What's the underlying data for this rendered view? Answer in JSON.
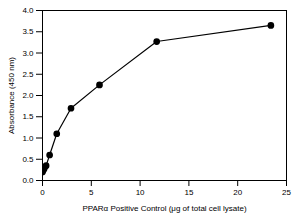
{
  "chart_data": {
    "type": "line",
    "x_label": "PPARα Positive Control (μg of total cell lysate)",
    "y_label": "Absorbance (450 nm)",
    "x": [
      0,
      0.09,
      0.18,
      0.37,
      0.73,
      1.46,
      2.92,
      5.84,
      11.7,
      23.4
    ],
    "values": [
      0.2,
      0.25,
      0.28,
      0.35,
      0.6,
      1.1,
      1.7,
      2.25,
      3.27,
      3.65
    ],
    "color": "#000000",
    "marker": "circle",
    "line_style": "solid",
    "xlim": [
      0,
      25
    ],
    "xticks": [
      0,
      5,
      10,
      15,
      20,
      25
    ],
    "ylim": [
      0,
      4
    ],
    "yticks": [
      {
        "value": 0,
        "label": "0.0"
      },
      {
        "value": 0.5,
        "label": "0.5"
      },
      {
        "value": 1,
        "label": "1.0"
      },
      {
        "value": 1.5,
        "label": "1.5"
      },
      {
        "value": 2,
        "label": "2.0"
      },
      {
        "value": 2.5,
        "label": "2.5"
      },
      {
        "value": 3,
        "label": "3.0"
      },
      {
        "value": 3.5,
        "label": "3.5"
      },
      {
        "value": 4,
        "label": "4.0"
      }
    ],
    "grid": false
  }
}
